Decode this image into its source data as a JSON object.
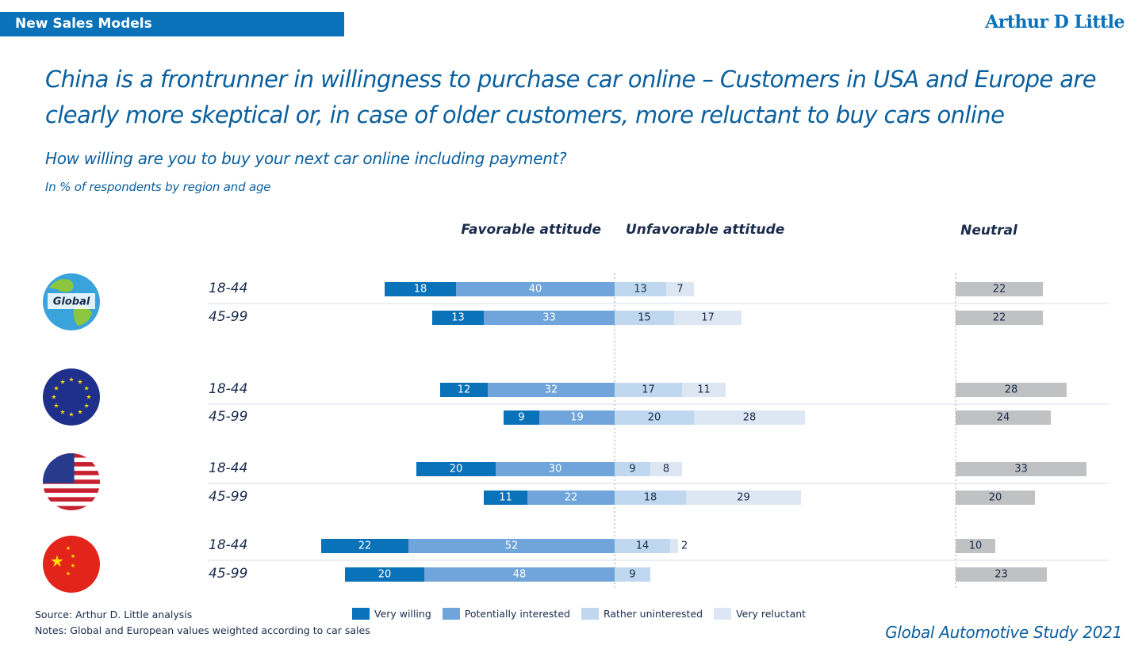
{
  "header": {
    "section_tag": "New Sales Models",
    "brand": "Arthur D Little"
  },
  "headline": "China is a frontrunner in willingness to purchase car online – Customers in USA and Europe are clearly more skeptical or, in case of older customers, more reluctant to buy cars online",
  "question": "How willing are you to buy your next car online including payment?",
  "unit_note": "In % of respondents by region and age",
  "footer": {
    "source": "Source: Arthur D. Little analysis",
    "notes": "Notes: Global and European values weighted according to car sales",
    "study": "Global Automotive Study 2021"
  },
  "colors": {
    "very_willing": "#0a72b8",
    "potentially_interested": "#6fa5da",
    "rather_uninterested": "#bfd7ef",
    "very_reluctant": "#dde7f3",
    "neutral": "#c0c1c3",
    "flag_blue": "#1e2f8c"
  },
  "chart_data": {
    "type": "bar",
    "orientation": "horizontal-diverging",
    "column_headers": {
      "favorable": "Favorable attitude",
      "unfavorable": "Unfavorable attitude",
      "neutral": "Neutral"
    },
    "legend": [
      "Very willing",
      "Potentially interested",
      "Rather uninterested",
      "Very reluctant"
    ],
    "groups": [
      {
        "region": "Global",
        "icon": "globe-icon",
        "icon_label": "Global",
        "rows": [
          {
            "age": "18-44",
            "very_willing": 18,
            "potentially_interested": 40,
            "rather_uninterested": 13,
            "very_reluctant": 7,
            "neutral": 22
          },
          {
            "age": "45-99",
            "very_willing": 13,
            "potentially_interested": 33,
            "rather_uninterested": 15,
            "very_reluctant": 17,
            "neutral": 22
          }
        ]
      },
      {
        "region": "Europe",
        "icon": "eu-flag-icon",
        "rows": [
          {
            "age": "18-44",
            "very_willing": 12,
            "potentially_interested": 32,
            "rather_uninterested": 17,
            "very_reluctant": 11,
            "neutral": 28
          },
          {
            "age": "45-99",
            "very_willing": 9,
            "potentially_interested": 19,
            "rather_uninterested": 20,
            "very_reluctant": 28,
            "neutral": 24
          }
        ]
      },
      {
        "region": "USA",
        "icon": "us-flag-icon",
        "rows": [
          {
            "age": "18-44",
            "very_willing": 20,
            "potentially_interested": 30,
            "rather_uninterested": 9,
            "very_reluctant": 8,
            "neutral": 33
          },
          {
            "age": "45-99",
            "very_willing": 11,
            "potentially_interested": 22,
            "rather_uninterested": 18,
            "very_reluctant": 29,
            "neutral": 20
          }
        ]
      },
      {
        "region": "China",
        "icon": "china-flag-icon",
        "rows": [
          {
            "age": "18-44",
            "very_willing": 22,
            "potentially_interested": 52,
            "rather_uninterested": 14,
            "very_reluctant": 2,
            "neutral": 10
          },
          {
            "age": "45-99",
            "very_willing": 20,
            "potentially_interested": 48,
            "rather_uninterested": 9,
            "very_reluctant": 0,
            "neutral": 23
          }
        ]
      }
    ]
  }
}
